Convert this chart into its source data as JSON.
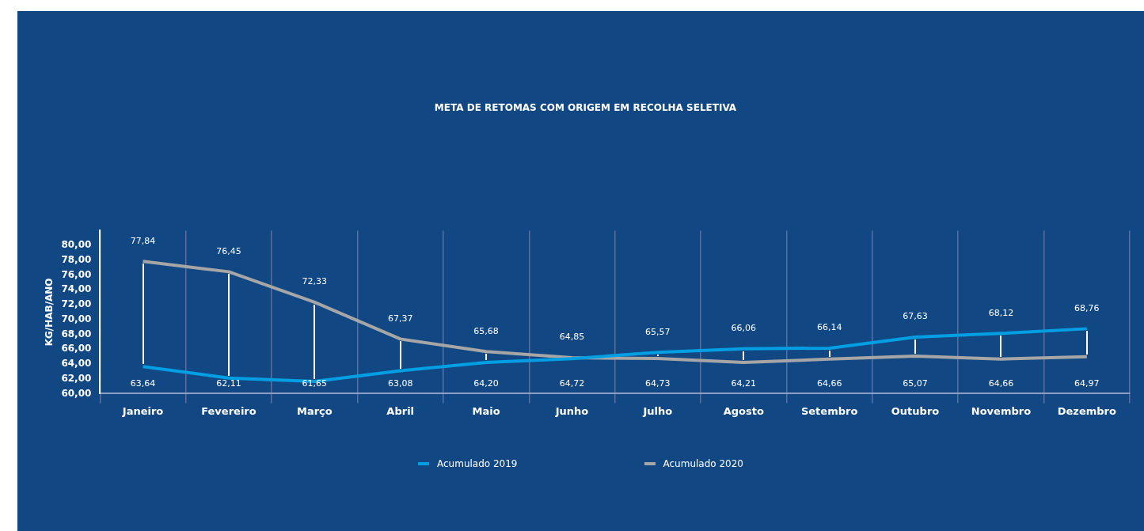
{
  "chart_data": {
    "type": "line",
    "title": "META DE RETOMAS COM ORIGEM EM RECOLHA SELETIVA",
    "ylabel": "KG/HAB/ANO",
    "categories": [
      "Janeiro",
      "Fevereiro",
      "Março",
      "Abril",
      "Maio",
      "Junho",
      "Julho",
      "Agosto",
      "Setembro",
      "Outubro",
      "Novembro",
      "Dezembro"
    ],
    "series": [
      {
        "name": "Acumulado 2019",
        "color": "#009fe3",
        "values": [
          63.64,
          62.11,
          61.65,
          63.08,
          64.2,
          64.72,
          65.57,
          66.06,
          66.14,
          67.63,
          68.12,
          68.76
        ],
        "value_labels": [
          "63,64",
          "62,11",
          "61,65",
          "63,08",
          "64,20",
          "64,72",
          "65,57",
          "66,06",
          "66,14",
          "67,63",
          "68,12",
          "68,76"
        ]
      },
      {
        "name": "Acumulado 2020",
        "color": "#a6a6a6",
        "values": [
          77.84,
          76.45,
          72.33,
          67.37,
          65.68,
          64.85,
          64.73,
          64.21,
          64.66,
          65.07,
          64.66,
          64.97
        ],
        "value_labels": [
          "77,84",
          "76,45",
          "72,33",
          "67,37",
          "65,68",
          "64,85",
          "64,73",
          "64,21",
          "64,66",
          "65,07",
          "64,66",
          "64,97"
        ]
      }
    ],
    "ylim": [
      60,
      82
    ],
    "yticks": [
      {
        "value": 60,
        "label": "60,00"
      },
      {
        "value": 62,
        "label": "62,00"
      },
      {
        "value": 64,
        "label": "64,00"
      },
      {
        "value": 66,
        "label": "66,00"
      },
      {
        "value": 68,
        "label": "68,00"
      },
      {
        "value": 70,
        "label": "70,00"
      },
      {
        "value": 72,
        "label": "72,00"
      },
      {
        "value": 74,
        "label": "74,00"
      },
      {
        "value": 76,
        "label": "76,00"
      },
      {
        "value": 78,
        "label": "78,00"
      },
      {
        "value": 80,
        "label": "80,00"
      }
    ],
    "grid": "x",
    "legend": "bottom",
    "marker": "none",
    "line_style": "solid"
  }
}
